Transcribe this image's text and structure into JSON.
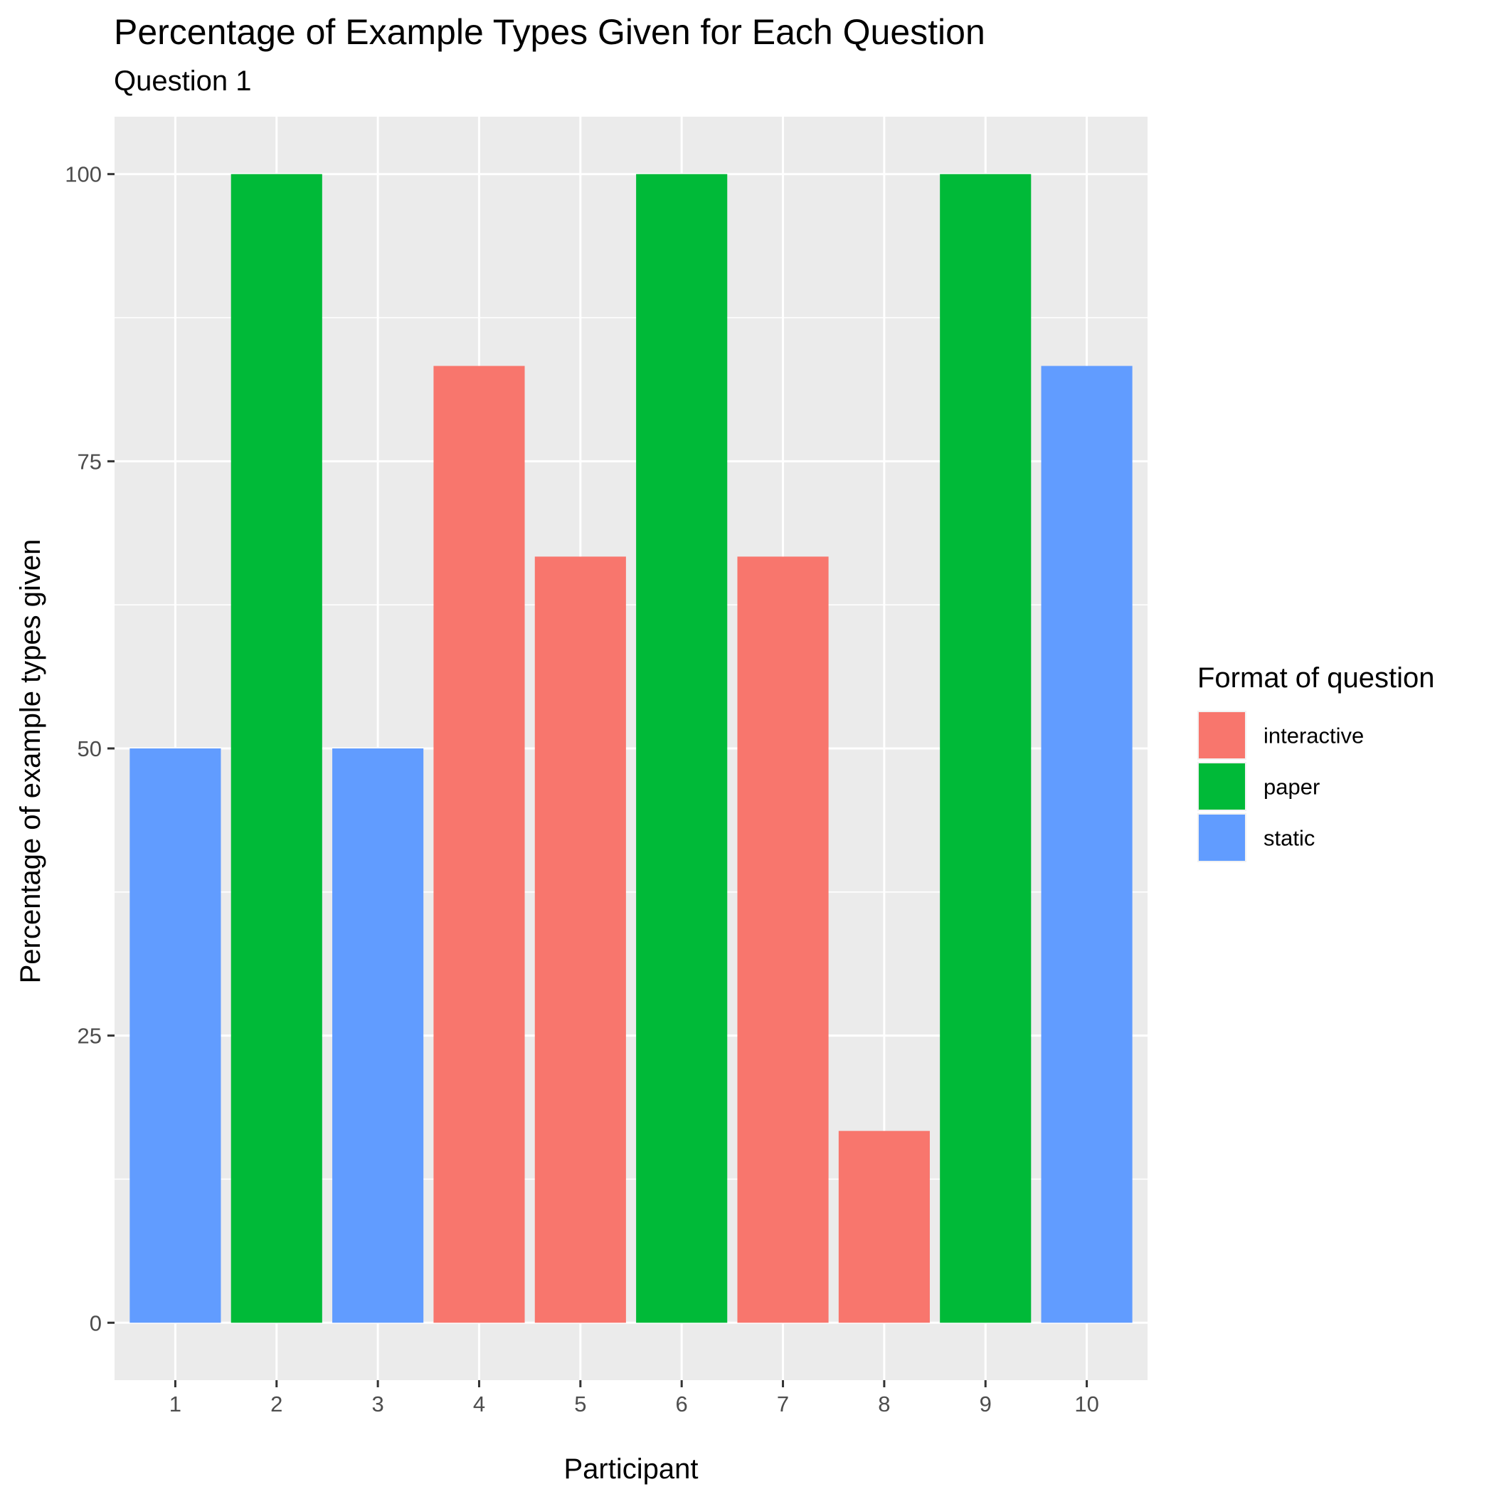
{
  "chart_data": {
    "type": "bar",
    "title": "Percentage of Example Types Given for Each Question",
    "subtitle": "Question 1",
    "xlabel": "Participant",
    "ylabel": "Percentage of example types given",
    "categories": [
      "1",
      "2",
      "3",
      "4",
      "5",
      "6",
      "7",
      "8",
      "9",
      "10"
    ],
    "values": [
      50,
      100,
      50,
      83.3,
      66.7,
      100,
      66.7,
      16.7,
      100,
      83.3
    ],
    "groups": [
      "static",
      "paper",
      "static",
      "interactive",
      "interactive",
      "paper",
      "interactive",
      "interactive",
      "paper",
      "static"
    ],
    "ylim": [
      -5,
      105
    ],
    "yticks": [
      0,
      25,
      50,
      75,
      100
    ],
    "grid": true,
    "legend": {
      "title": "Format of question",
      "position": "right",
      "entries": [
        {
          "label": "interactive",
          "color": "#F8766D"
        },
        {
          "label": "paper",
          "color": "#00BA38"
        },
        {
          "label": "static",
          "color": "#619CFF"
        }
      ]
    },
    "panel_background": "#EBEBEB",
    "grid_color": "#FFFFFF"
  }
}
